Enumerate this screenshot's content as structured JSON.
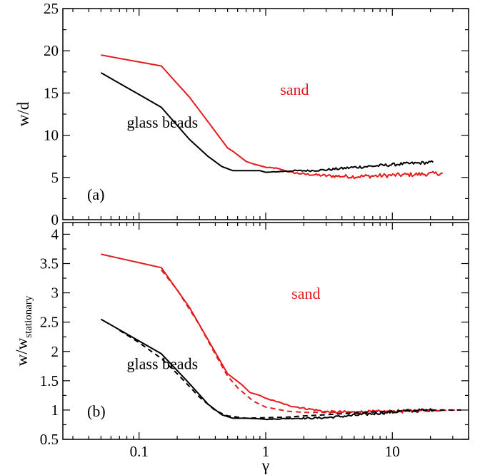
{
  "chart_data": [
    {
      "id": "a",
      "type": "line",
      "xscale": "log",
      "xlim": [
        0.025,
        40
      ],
      "ylim": [
        0,
        25
      ],
      "yticks": [
        0,
        5,
        10,
        15,
        20,
        25
      ],
      "ylabel": "w/d",
      "xlabel": "",
      "panel_label": "(a)",
      "series": [
        {
          "name": "sand",
          "color": "#e41a1c",
          "dashed": false,
          "noise": 0.25,
          "x": [
            0.05,
            0.15,
            0.25,
            0.35,
            0.5,
            0.55,
            0.7,
            0.8,
            1.0,
            1.2,
            1.6,
            2.0,
            2.5,
            3.0,
            5.0,
            8.0,
            12.0,
            18.0,
            25.0
          ],
          "y": [
            19.5,
            18.2,
            14.5,
            11.6,
            8.5,
            8.1,
            6.9,
            6.6,
            6.2,
            6.1,
            5.6,
            5.4,
            5.3,
            5.2,
            5.1,
            5.2,
            5.3,
            5.4,
            5.5
          ]
        },
        {
          "name": "glass beads",
          "color": "#000000",
          "dashed": false,
          "noise": 0.18,
          "x": [
            0.05,
            0.15,
            0.25,
            0.35,
            0.45,
            0.55,
            0.7,
            0.9,
            1.0,
            1.3,
            1.7,
            2.2,
            3.0,
            5.0,
            8.0,
            12.0,
            21.0
          ],
          "y": [
            17.4,
            13.3,
            9.5,
            7.5,
            6.3,
            5.8,
            5.8,
            5.8,
            5.6,
            5.7,
            5.8,
            5.8,
            5.9,
            6.2,
            6.4,
            6.6,
            6.8
          ]
        }
      ],
      "annotations": [
        {
          "text": "sand",
          "x": 1.3,
          "y": 14.8,
          "color": "#e41a1c"
        },
        {
          "text": "glass beads",
          "x": 0.08,
          "y": 10.9,
          "color": "#000000"
        }
      ]
    },
    {
      "id": "b",
      "type": "line",
      "xscale": "log",
      "xlim": [
        0.025,
        40
      ],
      "ylim": [
        0.5,
        4.2
      ],
      "yticks": [
        0.5,
        1,
        1.5,
        2,
        2.5,
        3,
        3.5,
        4
      ],
      "ylabel_main": "w/w",
      "ylabel_sub": "stationary",
      "xlabel": "γ",
      "xtick_values": [
        0.1,
        1,
        10
      ],
      "xtick_labels": [
        "0.1",
        "1",
        "10"
      ],
      "panel_label": "(b)",
      "series": [
        {
          "name": "sand",
          "color": "#e41a1c",
          "dashed": false,
          "noise": 0.03,
          "x": [
            0.05,
            0.15,
            0.25,
            0.35,
            0.5,
            0.55,
            0.65,
            0.75,
            0.9,
            1.0,
            1.2,
            1.5,
            2.0,
            2.5,
            3.0,
            5.0,
            8.0,
            12.0,
            18.0,
            25.0
          ],
          "y": [
            3.66,
            3.43,
            2.75,
            2.2,
            1.62,
            1.55,
            1.43,
            1.3,
            1.25,
            1.2,
            1.15,
            1.08,
            1.03,
            1.0,
            0.97,
            0.96,
            0.97,
            0.98,
            1.0,
            1.01
          ]
        },
        {
          "name": "glass beads",
          "color": "#000000",
          "dashed": false,
          "noise": 0.025,
          "x": [
            0.05,
            0.15,
            0.25,
            0.35,
            0.45,
            0.55,
            0.7,
            0.9,
            1.0,
            1.3,
            1.7,
            2.2,
            3.0,
            5.0,
            8.0,
            12.0,
            21.0
          ],
          "y": [
            2.55,
            1.96,
            1.45,
            1.1,
            0.92,
            0.86,
            0.86,
            0.85,
            0.84,
            0.85,
            0.86,
            0.86,
            0.87,
            0.91,
            0.95,
            0.98,
            1.0
          ]
        },
        {
          "name": "sand fit",
          "color": "#e41a1c",
          "dashed": true,
          "noise": 0,
          "x": [
            0.15,
            0.2,
            0.3,
            0.4,
            0.5,
            0.6,
            0.8,
            1.0,
            1.5,
            2.0,
            3.0,
            5.0,
            10.0,
            20.0,
            35.0
          ],
          "y": [
            3.39,
            3.05,
            2.45,
            1.95,
            1.58,
            1.38,
            1.15,
            1.05,
            0.98,
            0.96,
            0.96,
            0.97,
            0.98,
            0.99,
            1.0
          ]
        },
        {
          "name": "glass beads fit",
          "color": "#000000",
          "dashed": true,
          "noise": 0,
          "x": [
            0.07,
            0.1,
            0.15,
            0.2,
            0.3,
            0.4,
            0.5,
            0.7,
            1.0,
            1.5,
            2.0,
            3.0,
            5.0,
            10.0,
            20.0,
            35.0
          ],
          "y": [
            2.36,
            2.15,
            1.88,
            1.62,
            1.22,
            0.99,
            0.9,
            0.86,
            0.87,
            0.88,
            0.9,
            0.92,
            0.95,
            0.98,
            1.0,
            1.0
          ]
        }
      ],
      "annotations": [
        {
          "text": "sand",
          "x": 1.6,
          "y": 2.9,
          "color": "#e41a1c"
        },
        {
          "text": "glass beads",
          "x": 0.08,
          "y": 1.7,
          "color": "#000000"
        }
      ]
    }
  ]
}
